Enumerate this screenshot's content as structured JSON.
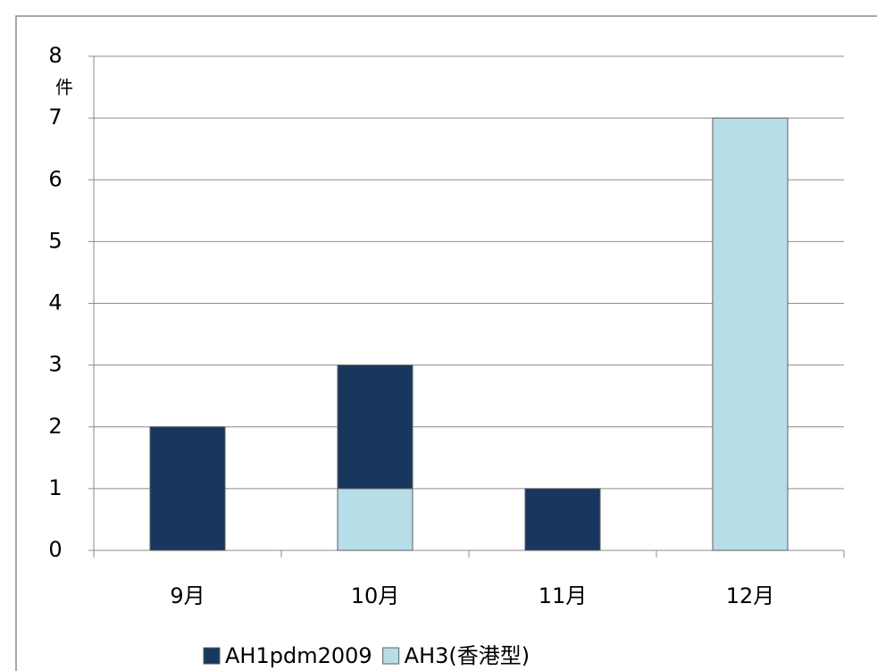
{
  "chart_data": {
    "type": "stacked-bar",
    "y_label": "件",
    "categories": [
      "9月",
      "10月",
      "11月",
      "12月"
    ],
    "series": [
      {
        "name": "AH1pdm2009",
        "color": "#17375e",
        "values": [
          2,
          2,
          1,
          0
        ]
      },
      {
        "name": "AH3(香港型)",
        "color": "#b7dde8",
        "values": [
          0,
          1,
          0,
          7
        ]
      }
    ],
    "ylim": [
      0,
      8
    ],
    "yticks": [
      0,
      1,
      2,
      3,
      4,
      5,
      6,
      7,
      8
    ],
    "grid": true,
    "legend": "bottom"
  }
}
